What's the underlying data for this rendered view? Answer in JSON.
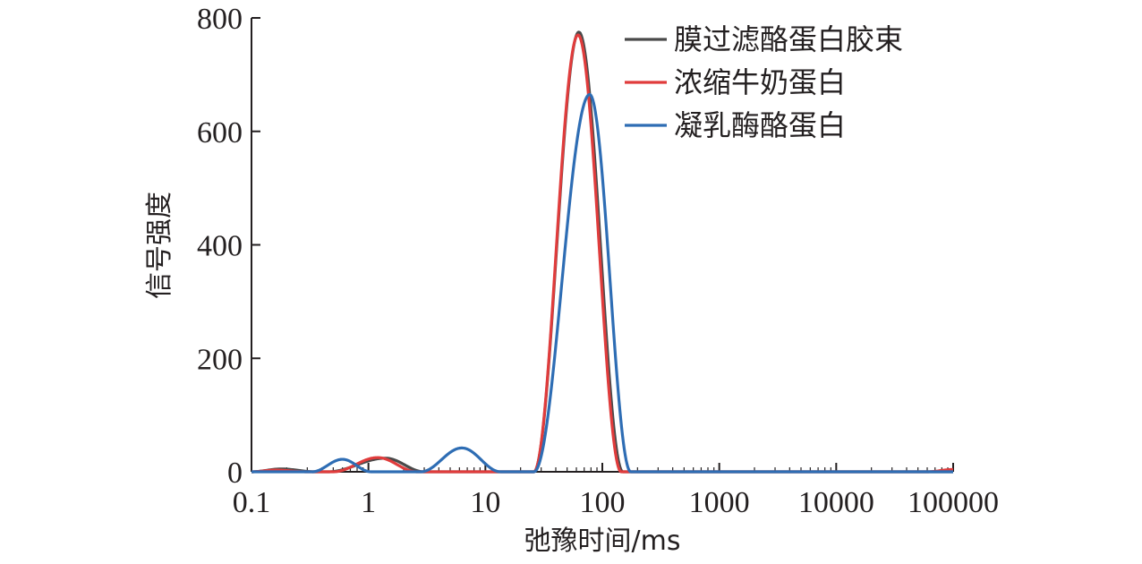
{
  "chart_data": {
    "type": "line",
    "x_scale": "log",
    "xlabel": "弛豫时间/ms",
    "ylabel": "信号强度",
    "xlim": [
      0.1,
      100000
    ],
    "ylim": [
      0,
      800
    ],
    "x_ticks": [
      {
        "value": 0.1,
        "label": "0.1"
      },
      {
        "value": 1,
        "label": "1"
      },
      {
        "value": 10,
        "label": "10"
      },
      {
        "value": 100,
        "label": "100"
      },
      {
        "value": 1000,
        "label": "1000"
      },
      {
        "value": 10000,
        "label": "10000"
      },
      {
        "value": 100000,
        "label": "100000"
      }
    ],
    "y_ticks": [
      {
        "value": 0,
        "label": "0"
      },
      {
        "value": 200,
        "label": "200"
      },
      {
        "value": 400,
        "label": "400"
      },
      {
        "value": 600,
        "label": "600"
      },
      {
        "value": 800,
        "label": "800"
      }
    ],
    "legend_position": "top-right",
    "grid": false,
    "series": [
      {
        "name": "膜过滤酪蛋白胶束",
        "color": "#4a4a4a",
        "peaks": [
          {
            "from": 0.1,
            "to": 0.35,
            "peak_x": 0.18,
            "peak_y": 5
          },
          {
            "from": 0.45,
            "to": 3.0,
            "peak_x": 1.4,
            "peak_y": 24
          },
          {
            "from": 26.0,
            "to": 150.0,
            "peak_x": 63.0,
            "peak_y": 775
          }
        ]
      },
      {
        "name": "浓缩牛奶蛋白",
        "color": "#e03c3c",
        "peaks": [
          {
            "from": 0.1,
            "to": 0.3,
            "peak_x": 0.16,
            "peak_y": 3
          },
          {
            "from": 0.5,
            "to": 2.6,
            "peak_x": 1.2,
            "peak_y": 25
          },
          {
            "from": 26.0,
            "to": 145.0,
            "peak_x": 62.0,
            "peak_y": 770
          },
          {
            "from": 60000.0,
            "to": 100000.0,
            "peak_x": 100000.0,
            "peak_y": 4
          }
        ]
      },
      {
        "name": "凝乳酶酪蛋白",
        "color": "#2e6db4",
        "peaks": [
          {
            "from": 0.33,
            "to": 1.05,
            "peak_x": 0.6,
            "peak_y": 22
          },
          {
            "from": 2.8,
            "to": 13.5,
            "peak_x": 6.3,
            "peak_y": 42
          },
          {
            "from": 26.0,
            "to": 175.0,
            "peak_x": 78.0,
            "peak_y": 665
          }
        ]
      }
    ]
  }
}
